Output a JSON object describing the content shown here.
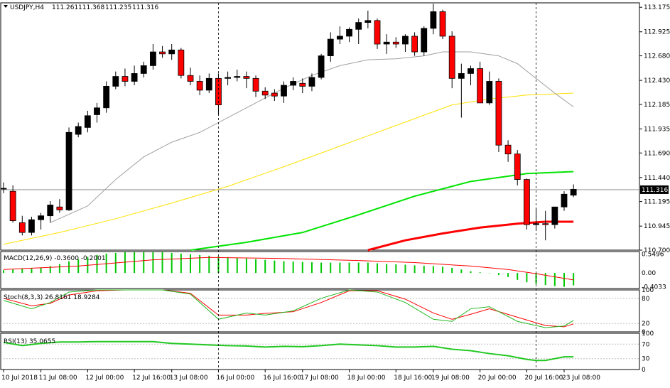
{
  "chart_data": {
    "type": "candlestick",
    "title": "USDJPY,H4",
    "ohlc_header": [
      "111.261",
      "111.368",
      "111.235",
      "111.316"
    ],
    "current_price_label": "111.316",
    "current_price": 111.316,
    "price_ticks": [
      113.175,
      112.925,
      112.68,
      112.43,
      112.185,
      111.935,
      111.69,
      111.44,
      111.195,
      110.945,
      110.7
    ],
    "price_tick_labels": [
      "113.175",
      "112.925",
      "112.680",
      "112.430",
      "112.185",
      "111.935",
      "111.690",
      "111.440",
      "111.195",
      "110.945",
      "110.700"
    ],
    "price_range": [
      110.7,
      113.22
    ],
    "x_labels": [
      {
        "idx": 0,
        "text": "10 Jul 2018"
      },
      {
        "idx": 4,
        "text": "11 Jul 08:00"
      },
      {
        "idx": 9,
        "text": "12 Jul 00:00"
      },
      {
        "idx": 14,
        "text": "12 Jul 16:00"
      },
      {
        "idx": 18,
        "text": "13 Jul 08:00"
      },
      {
        "idx": 23,
        "text": "16 Jul 00:00"
      },
      {
        "idx": 28,
        "text": "16 Jul 16:00"
      },
      {
        "idx": 32,
        "text": "17 Jul 08:00"
      },
      {
        "idx": 37,
        "text": "18 Jul 00:00"
      },
      {
        "idx": 42,
        "text": "18 Jul 16:00"
      },
      {
        "idx": 46,
        "text": "19 Jul 08:00"
      },
      {
        "idx": 51,
        "text": "20 Jul 00:00"
      },
      {
        "idx": 56,
        "text": "20 Jul 16:00"
      },
      {
        "idx": 60,
        "text": "23 Jul 08:00"
      }
    ],
    "separators": [
      23,
      57
    ],
    "candles": [
      [
        111.33,
        111.39,
        111.28,
        111.33
      ],
      [
        111.3,
        111.36,
        110.98,
        111.0
      ],
      [
        110.98,
        111.05,
        110.85,
        110.88
      ],
      [
        110.88,
        111.04,
        110.85,
        111.01
      ],
      [
        111.01,
        111.08,
        110.91,
        111.05
      ],
      [
        111.05,
        111.2,
        110.98,
        111.16
      ],
      [
        111.14,
        111.22,
        111.08,
        111.11
      ],
      [
        111.11,
        111.95,
        111.1,
        111.9
      ],
      [
        111.88,
        112.0,
        111.85,
        111.96
      ],
      [
        111.95,
        112.12,
        111.9,
        112.07
      ],
      [
        112.08,
        112.2,
        112.0,
        112.15
      ],
      [
        112.15,
        112.42,
        112.1,
        112.37
      ],
      [
        112.37,
        112.52,
        112.34,
        112.47
      ],
      [
        112.47,
        112.55,
        112.37,
        112.42
      ],
      [
        112.42,
        112.58,
        112.38,
        112.5
      ],
      [
        112.5,
        112.62,
        112.46,
        112.58
      ],
      [
        112.58,
        112.8,
        112.54,
        112.72
      ],
      [
        112.72,
        112.78,
        112.66,
        112.7
      ],
      [
        112.7,
        112.8,
        112.64,
        112.74
      ],
      [
        112.74,
        112.76,
        112.45,
        112.48
      ],
      [
        112.48,
        112.56,
        112.38,
        112.42
      ],
      [
        112.42,
        112.48,
        112.28,
        112.33
      ],
      [
        112.33,
        112.5,
        112.3,
        112.45
      ],
      [
        112.45,
        112.5,
        112.08,
        112.18
      ],
      [
        112.45,
        112.52,
        112.38,
        112.46
      ],
      [
        112.46,
        112.54,
        112.42,
        112.47
      ],
      [
        112.47,
        112.52,
        112.35,
        112.45
      ],
      [
        112.45,
        112.48,
        112.26,
        112.32
      ],
      [
        112.32,
        112.36,
        112.24,
        112.28
      ],
      [
        112.3,
        112.34,
        112.22,
        112.27
      ],
      [
        112.27,
        112.42,
        112.2,
        112.38
      ],
      [
        112.38,
        112.46,
        112.33,
        112.42
      ],
      [
        112.4,
        112.45,
        112.3,
        112.37
      ],
      [
        112.37,
        112.5,
        112.32,
        112.46
      ],
      [
        112.46,
        112.7,
        112.44,
        112.68
      ],
      [
        112.68,
        112.92,
        112.62,
        112.85
      ],
      [
        112.85,
        112.98,
        112.8,
        112.88
      ],
      [
        112.88,
        112.97,
        112.82,
        112.95
      ],
      [
        112.95,
        113.06,
        112.8,
        113.02
      ],
      [
        113.02,
        113.14,
        112.96,
        113.04
      ],
      [
        113.04,
        113.06,
        112.75,
        112.8
      ],
      [
        112.8,
        112.9,
        112.7,
        112.82
      ],
      [
        112.82,
        112.87,
        112.76,
        112.8
      ],
      [
        112.8,
        112.9,
        112.72,
        112.88
      ],
      [
        112.88,
        112.92,
        112.68,
        112.72
      ],
      [
        112.72,
        112.98,
        112.68,
        112.96
      ],
      [
        112.96,
        113.21,
        112.9,
        113.13
      ],
      [
        113.13,
        113.15,
        112.85,
        112.88
      ],
      [
        112.88,
        112.93,
        112.35,
        112.45
      ],
      [
        112.45,
        112.6,
        112.05,
        112.5
      ],
      [
        112.5,
        112.58,
        112.38,
        112.55
      ],
      [
        112.55,
        112.62,
        112.2,
        112.2
      ],
      [
        112.2,
        112.52,
        112.18,
        112.42
      ],
      [
        112.42,
        112.45,
        111.7,
        111.77
      ],
      [
        111.77,
        111.82,
        111.6,
        111.68
      ],
      [
        111.68,
        111.72,
        111.36,
        111.42
      ],
      [
        111.42,
        111.43,
        110.91,
        110.96
      ],
      [
        110.96,
        111.13,
        110.9,
        110.97
      ],
      [
        110.97,
        111.1,
        110.8,
        110.96
      ],
      [
        110.96,
        111.12,
        110.92,
        111.14
      ],
      [
        111.14,
        111.3,
        111.1,
        111.27
      ],
      [
        111.26,
        111.37,
        111.24,
        111.32
      ]
    ],
    "moving_averages": [
      {
        "color": "#ff0000",
        "width": 3,
        "points": [
          [
            39,
            110.7
          ],
          [
            43,
            110.8
          ],
          [
            47,
            110.87
          ],
          [
            51,
            110.93
          ],
          [
            55,
            110.97
          ],
          [
            58,
            110.99
          ],
          [
            61,
            110.99
          ]
        ]
      },
      {
        "color": "#00e400",
        "width": 2,
        "points": [
          [
            20,
            110.7
          ],
          [
            26,
            110.78
          ],
          [
            32,
            110.88
          ],
          [
            38,
            111.06
          ],
          [
            44,
            111.25
          ],
          [
            50,
            111.4
          ],
          [
            56,
            111.48
          ],
          [
            61,
            111.5
          ]
        ]
      },
      {
        "color": "#ffe100",
        "width": 1,
        "points": [
          [
            0,
            110.76
          ],
          [
            6,
            110.88
          ],
          [
            12,
            111.02
          ],
          [
            18,
            111.18
          ],
          [
            24,
            111.35
          ],
          [
            30,
            111.55
          ],
          [
            36,
            111.76
          ],
          [
            42,
            111.97
          ],
          [
            48,
            112.18
          ],
          [
            52,
            112.24
          ],
          [
            56,
            112.28
          ],
          [
            61,
            112.3
          ]
        ]
      },
      {
        "color": "#a0a0a0",
        "width": 1,
        "points": [
          [
            5,
            110.98
          ],
          [
            9,
            111.15
          ],
          [
            12,
            111.42
          ],
          [
            15,
            111.65
          ],
          [
            18,
            111.8
          ],
          [
            21,
            111.9
          ],
          [
            24,
            112.05
          ],
          [
            27,
            112.2
          ],
          [
            30,
            112.35
          ],
          [
            33,
            112.48
          ],
          [
            36,
            112.58
          ],
          [
            39,
            112.64
          ],
          [
            42,
            112.65
          ],
          [
            45,
            112.68
          ],
          [
            47,
            112.72
          ],
          [
            50,
            112.72
          ],
          [
            53,
            112.68
          ],
          [
            55,
            112.6
          ],
          [
            57,
            112.45
          ],
          [
            59,
            112.3
          ],
          [
            61,
            112.16
          ]
        ]
      }
    ],
    "macd": {
      "title": "MACD(12,26,9) -0.3600 -0.2001",
      "ticks": [
        0.5496,
        0.0,
        -0.4033
      ],
      "tick_labels": [
        "0.5496",
        "0.00",
        "-0.4033"
      ],
      "range": [
        -0.45,
        0.62
      ],
      "histogram": [
        0.08,
        0.1,
        0.12,
        0.14,
        0.16,
        0.2,
        0.26,
        0.34,
        0.4,
        0.46,
        0.52,
        0.56,
        0.58,
        0.6,
        0.6,
        0.6,
        0.6,
        0.6,
        0.58,
        0.56,
        0.54,
        0.52,
        0.5,
        0.48,
        0.46,
        0.44,
        0.42,
        0.4,
        0.38,
        0.36,
        0.34,
        0.33,
        0.32,
        0.31,
        0.3,
        0.3,
        0.3,
        0.3,
        0.3,
        0.3,
        0.28,
        0.26,
        0.25,
        0.24,
        0.22,
        0.21,
        0.2,
        0.18,
        0.15,
        0.1,
        0.05,
        0.02,
        -0.01,
        -0.06,
        -0.12,
        -0.2,
        -0.27,
        -0.32,
        -0.35,
        -0.38,
        -0.4,
        -0.36
      ],
      "signal": [
        [
          0,
          0.1
        ],
        [
          8,
          0.2
        ],
        [
          16,
          0.38
        ],
        [
          22,
          0.45
        ],
        [
          30,
          0.42
        ],
        [
          38,
          0.36
        ],
        [
          44,
          0.3
        ],
        [
          50,
          0.2
        ],
        [
          54,
          0.1
        ],
        [
          57,
          -0.02
        ],
        [
          61,
          -0.2
        ]
      ]
    },
    "stoch": {
      "title": "Stoch(8,3,3) 26.8161 18.9284",
      "ticks": [
        100,
        80,
        20,
        0
      ],
      "range": [
        0,
        100
      ],
      "k": [
        [
          0,
          75
        ],
        [
          3,
          55
        ],
        [
          5,
          70
        ],
        [
          7,
          95
        ],
        [
          10,
          100
        ],
        [
          13,
          100
        ],
        [
          17,
          100
        ],
        [
          20,
          90
        ],
        [
          23,
          30
        ],
        [
          26,
          45
        ],
        [
          28,
          40
        ],
        [
          31,
          50
        ],
        [
          34,
          80
        ],
        [
          37,
          100
        ],
        [
          40,
          95
        ],
        [
          43,
          70
        ],
        [
          46,
          30
        ],
        [
          48,
          25
        ],
        [
          50,
          55
        ],
        [
          52,
          60
        ],
        [
          55,
          25
        ],
        [
          58,
          10
        ],
        [
          60,
          14
        ],
        [
          61,
          27
        ]
      ],
      "d": [
        [
          0,
          80
        ],
        [
          3,
          62
        ],
        [
          5,
          68
        ],
        [
          7,
          88
        ],
        [
          10,
          98
        ],
        [
          13,
          100
        ],
        [
          17,
          100
        ],
        [
          20,
          92
        ],
        [
          23,
          40
        ],
        [
          26,
          40
        ],
        [
          28,
          44
        ],
        [
          31,
          48
        ],
        [
          34,
          70
        ],
        [
          37,
          98
        ],
        [
          40,
          98
        ],
        [
          43,
          78
        ],
        [
          46,
          45
        ],
        [
          48,
          30
        ],
        [
          50,
          42
        ],
        [
          52,
          55
        ],
        [
          55,
          35
        ],
        [
          58,
          15
        ],
        [
          60,
          12
        ],
        [
          61,
          19
        ]
      ]
    },
    "rsi": {
      "title": "RSI(13) 35.0655",
      "ticks": [
        100,
        70,
        30,
        0
      ],
      "range": [
        0,
        100
      ],
      "values": [
        [
          0,
          75
        ],
        [
          2,
          66
        ],
        [
          4,
          72
        ],
        [
          6,
          76
        ],
        [
          8,
          76
        ],
        [
          10,
          77
        ],
        [
          12,
          77
        ],
        [
          14,
          77
        ],
        [
          16,
          77
        ],
        [
          18,
          72
        ],
        [
          20,
          70
        ],
        [
          22,
          68
        ],
        [
          24,
          66
        ],
        [
          26,
          65
        ],
        [
          28,
          62
        ],
        [
          30,
          64
        ],
        [
          32,
          63
        ],
        [
          34,
          66
        ],
        [
          36,
          70
        ],
        [
          38,
          68
        ],
        [
          40,
          66
        ],
        [
          42,
          62
        ],
        [
          44,
          62
        ],
        [
          46,
          64
        ],
        [
          48,
          56
        ],
        [
          50,
          52
        ],
        [
          52,
          44
        ],
        [
          54,
          38
        ],
        [
          56,
          28
        ],
        [
          57,
          25
        ],
        [
          58,
          25
        ],
        [
          59,
          30
        ],
        [
          60,
          35
        ],
        [
          61,
          35
        ]
      ]
    }
  }
}
